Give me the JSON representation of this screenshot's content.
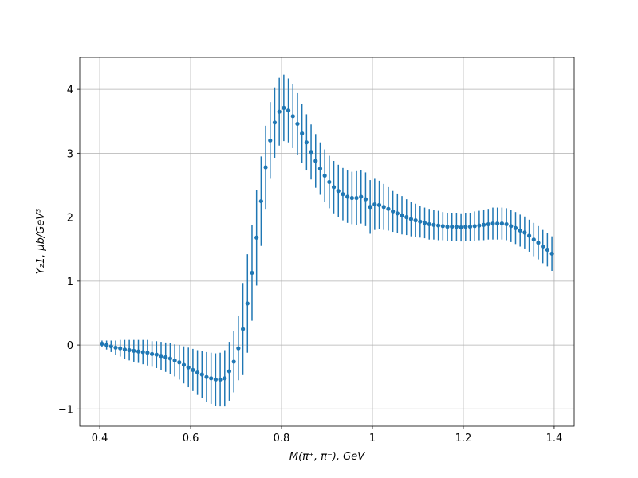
{
  "chart_data": {
    "type": "errorbar",
    "xlabel": "M(π⁺, π⁻), GeV",
    "ylabel": "Y₂1, μb/GeV³",
    "color": "#1f77b4",
    "grid": true,
    "xlim": [
      0.356,
      1.444
    ],
    "ylim": [
      -1.27,
      4.5
    ],
    "xticks": [
      0.4,
      0.6,
      0.8,
      1.0,
      1.2,
      1.4
    ],
    "yticks": [
      {
        "value": -1,
        "label": "−1"
      },
      0,
      1,
      2,
      3,
      4
    ],
    "x": [
      0.405,
      0.415,
      0.425,
      0.435,
      0.445,
      0.455,
      0.465,
      0.475,
      0.485,
      0.495,
      0.505,
      0.515,
      0.525,
      0.535,
      0.545,
      0.555,
      0.565,
      0.575,
      0.585,
      0.595,
      0.605,
      0.615,
      0.625,
      0.635,
      0.645,
      0.655,
      0.665,
      0.675,
      0.685,
      0.695,
      0.705,
      0.715,
      0.725,
      0.735,
      0.745,
      0.755,
      0.765,
      0.775,
      0.785,
      0.795,
      0.805,
      0.815,
      0.825,
      0.835,
      0.845,
      0.855,
      0.865,
      0.875,
      0.885,
      0.895,
      0.905,
      0.915,
      0.925,
      0.935,
      0.945,
      0.955,
      0.965,
      0.975,
      0.985,
      0.995,
      1.005,
      1.015,
      1.025,
      1.035,
      1.045,
      1.055,
      1.065,
      1.075,
      1.085,
      1.095,
      1.105,
      1.115,
      1.125,
      1.135,
      1.145,
      1.155,
      1.165,
      1.175,
      1.185,
      1.195,
      1.205,
      1.215,
      1.225,
      1.235,
      1.245,
      1.255,
      1.265,
      1.275,
      1.285,
      1.295,
      1.305,
      1.315,
      1.325,
      1.335,
      1.345,
      1.355,
      1.365,
      1.375,
      1.385,
      1.395
    ],
    "values": [
      0.02,
      0.0,
      -0.02,
      -0.04,
      -0.05,
      -0.07,
      -0.08,
      -0.09,
      -0.1,
      -0.11,
      -0.12,
      -0.14,
      -0.15,
      -0.17,
      -0.19,
      -0.21,
      -0.24,
      -0.27,
      -0.31,
      -0.35,
      -0.39,
      -0.43,
      -0.46,
      -0.5,
      -0.52,
      -0.54,
      -0.54,
      -0.52,
      -0.41,
      -0.26,
      -0.05,
      0.25,
      0.65,
      1.13,
      1.68,
      2.25,
      2.78,
      3.2,
      3.48,
      3.65,
      3.71,
      3.67,
      3.58,
      3.46,
      3.31,
      3.17,
      3.02,
      2.88,
      2.76,
      2.65,
      2.55,
      2.47,
      2.41,
      2.36,
      2.32,
      2.3,
      2.3,
      2.32,
      2.28,
      2.16,
      2.2,
      2.19,
      2.16,
      2.13,
      2.09,
      2.06,
      2.03,
      2.0,
      1.97,
      1.95,
      1.93,
      1.91,
      1.89,
      1.88,
      1.87,
      1.86,
      1.85,
      1.85,
      1.85,
      1.84,
      1.85,
      1.85,
      1.86,
      1.87,
      1.88,
      1.89,
      1.9,
      1.9,
      1.9,
      1.89,
      1.86,
      1.83,
      1.79,
      1.76,
      1.71,
      1.65,
      1.6,
      1.54,
      1.49,
      1.43
    ],
    "errors": [
      0.05,
      0.07,
      0.09,
      0.11,
      0.13,
      0.15,
      0.16,
      0.17,
      0.18,
      0.19,
      0.2,
      0.2,
      0.21,
      0.22,
      0.23,
      0.24,
      0.25,
      0.27,
      0.29,
      0.31,
      0.33,
      0.35,
      0.37,
      0.39,
      0.4,
      0.41,
      0.42,
      0.44,
      0.46,
      0.48,
      0.5,
      0.72,
      0.77,
      0.75,
      0.75,
      0.7,
      0.65,
      0.6,
      0.55,
      0.53,
      0.52,
      0.5,
      0.5,
      0.48,
      0.46,
      0.44,
      0.43,
      0.42,
      0.41,
      0.41,
      0.41,
      0.41,
      0.41,
      0.41,
      0.41,
      0.41,
      0.42,
      0.42,
      0.42,
      0.42,
      0.4,
      0.38,
      0.36,
      0.34,
      0.32,
      0.31,
      0.3,
      0.28,
      0.27,
      0.26,
      0.25,
      0.24,
      0.24,
      0.23,
      0.23,
      0.22,
      0.22,
      0.22,
      0.22,
      0.22,
      0.22,
      0.22,
      0.23,
      0.23,
      0.24,
      0.24,
      0.25,
      0.25,
      0.25,
      0.25,
      0.25,
      0.25,
      0.25,
      0.25,
      0.25,
      0.26,
      0.26,
      0.26,
      0.26,
      0.27
    ]
  }
}
